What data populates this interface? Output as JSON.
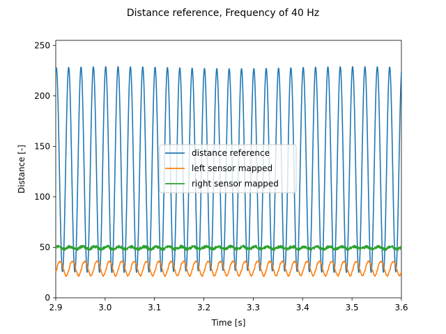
{
  "chart_data": {
    "type": "line",
    "title": "Distance reference, Frequency of 40 Hz",
    "xlabel": "Time [s]",
    "ylabel": "Distance [-]",
    "xlim": [
      2.9,
      3.6
    ],
    "ylim": [
      0,
      255
    ],
    "xticks": [
      "2.9",
      "3.0",
      "3.1",
      "3.2",
      "3.3",
      "3.4",
      "3.5",
      "3.6"
    ],
    "yticks": [
      "0",
      "50",
      "100",
      "150",
      "200",
      "250"
    ],
    "grid": false,
    "legend_position": "center",
    "series": [
      {
        "name": "distance reference",
        "color": "#1f77b4",
        "shape": "periodic oscillation",
        "period": 0.025,
        "min": 25,
        "max": 229
      },
      {
        "name": "left sensor mapped",
        "color": "#ff7f0e",
        "shape": "periodic oscillation",
        "period": 0.025,
        "min": 21,
        "max": 36
      },
      {
        "name": "right sensor mapped",
        "color": "#2ca02c",
        "shape": "noisy ripple",
        "period": 0.025,
        "min": 46,
        "max": 53
      }
    ]
  }
}
